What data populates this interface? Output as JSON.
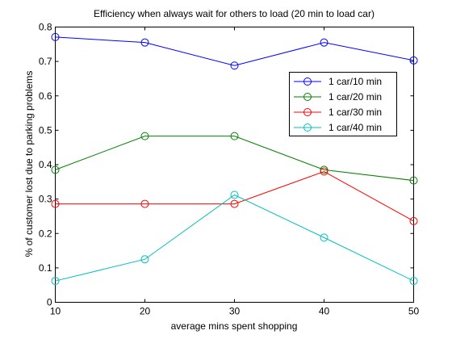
{
  "chart_data": {
    "type": "line",
    "title": "Efficiency when always wait for others to load  (20 min to load car)",
    "xlabel": "average mins spent shopping",
    "ylabel": "% of customer lost due to parking problems",
    "x": [
      10,
      20,
      30,
      40,
      50
    ],
    "xlim": [
      10,
      50
    ],
    "ylim": [
      0,
      0.8
    ],
    "xticks": [
      10,
      20,
      30,
      40,
      50
    ],
    "yticks": [
      0,
      0.1,
      0.2,
      0.3,
      0.4,
      0.5,
      0.6,
      0.7,
      0.8
    ],
    "xtick_labels": [
      "10",
      "20",
      "30",
      "40",
      "50"
    ],
    "ytick_labels": [
      "0",
      "0.1",
      "0.2",
      "0.3",
      "0.4",
      "0.5",
      "0.6",
      "0.7",
      "0.8"
    ],
    "grid": false,
    "legend_position": "top-right",
    "marker": "circle",
    "series": [
      {
        "name": "1 car/10 min",
        "color": "#0000ff",
        "values": [
          0.771,
          0.755,
          0.688,
          0.755,
          0.703
        ]
      },
      {
        "name": "1 car/20 min",
        "color": "#008000",
        "values": [
          0.385,
          0.483,
          0.483,
          0.385,
          0.354
        ]
      },
      {
        "name": "1 car/30 min",
        "color": "#ff0000",
        "values": [
          0.286,
          0.286,
          0.286,
          0.38,
          0.236
        ]
      },
      {
        "name": "1 car/40 min",
        "color": "#00bfbf",
        "values": [
          0.062,
          0.125,
          0.312,
          0.188,
          0.062
        ]
      }
    ]
  }
}
